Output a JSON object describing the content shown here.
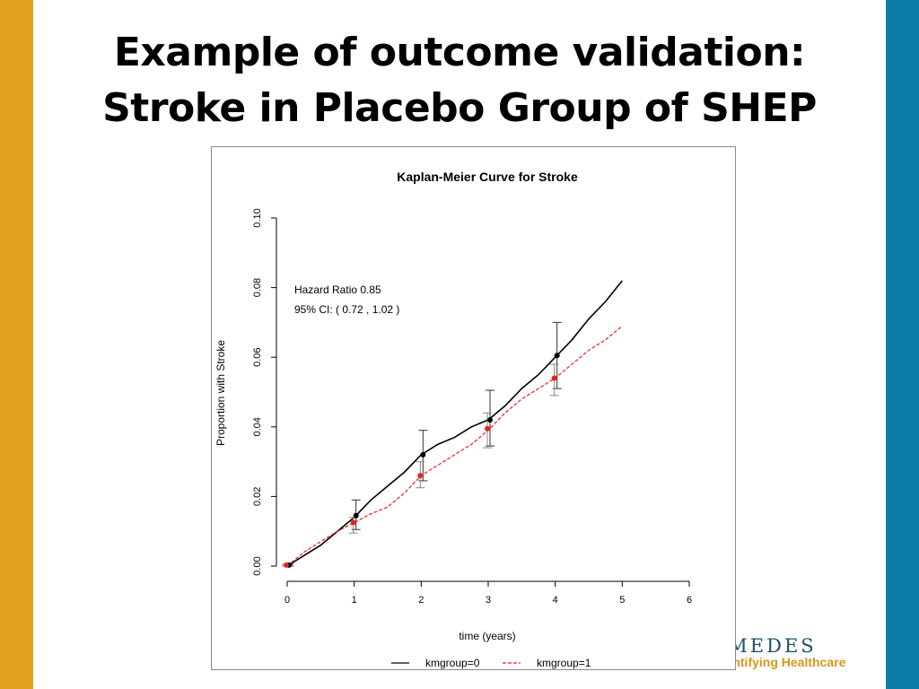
{
  "slide": {
    "title_line1": "Example of outcome validation:",
    "title_line2": "Stroke in Placebo Group of SHEP",
    "accent_left": "#e2a31e",
    "accent_right": "#0b7ea6"
  },
  "logo": {
    "name": "IMEDES",
    "tagline": "uantifying Healthcare"
  },
  "chart_data": {
    "type": "line",
    "title": "Kaplan-Meier Curve for Stroke",
    "xlabel": "time (years)",
    "ylabel": "Proportion with Stroke",
    "xlim": [
      0,
      6
    ],
    "ylim": [
      0,
      0.1
    ],
    "xticks": [
      0,
      1,
      2,
      3,
      4,
      5,
      6
    ],
    "xtick_labels": [
      "0",
      "1",
      "2",
      "3",
      "4",
      "5",
      "6"
    ],
    "yticks": [
      0,
      0.02,
      0.04,
      0.06,
      0.08,
      0.1
    ],
    "ytick_labels": [
      "0.00",
      "0.02",
      "0.04",
      "0.06",
      "0.08",
      "0.10"
    ],
    "grid": false,
    "annotations": [
      "Hazard Ratio 0.85",
      "95% CI: ( 0.72 , 1.02 )"
    ],
    "legend_position": "bottom",
    "series": [
      {
        "name": "kmgroup=0",
        "color": "#000000",
        "style": "solid",
        "x": [
          0,
          0.25,
          0.5,
          0.75,
          1,
          1.25,
          1.5,
          1.75,
          2,
          2.25,
          2.5,
          2.75,
          3,
          3.25,
          3.5,
          3.75,
          4,
          4.25,
          4.5,
          4.75,
          5
        ],
        "y": [
          0,
          0.003,
          0.006,
          0.01,
          0.014,
          0.019,
          0.023,
          0.027,
          0.032,
          0.035,
          0.037,
          0.04,
          0.042,
          0.046,
          0.051,
          0.055,
          0.06,
          0.065,
          0.071,
          0.076,
          0.082
        ],
        "points": {
          "x": [
            0,
            1,
            2,
            3,
            4
          ],
          "y": [
            0.0003,
            0.0145,
            0.032,
            0.042,
            0.0605
          ]
        },
        "ci_low": [
          0.0,
          0.0105,
          0.0245,
          0.0345,
          0.051
        ],
        "ci_high": [
          0.0005,
          0.019,
          0.039,
          0.0505,
          0.07
        ]
      },
      {
        "name": "kmgroup=1",
        "color": "#e8221c",
        "style": "dashed",
        "x": [
          0,
          0.25,
          0.5,
          0.75,
          1,
          1.25,
          1.5,
          1.75,
          2,
          2.25,
          2.5,
          2.75,
          3,
          3.25,
          3.5,
          3.75,
          4,
          4.25,
          4.5,
          4.75,
          5
        ],
        "y": [
          0,
          0.004,
          0.007,
          0.01,
          0.0125,
          0.015,
          0.017,
          0.021,
          0.026,
          0.029,
          0.032,
          0.035,
          0.039,
          0.044,
          0.048,
          0.051,
          0.054,
          0.058,
          0.062,
          0.065,
          0.069
        ],
        "points": {
          "x": [
            0,
            1,
            2,
            3,
            4
          ],
          "y": [
            0.0003,
            0.0125,
            0.026,
            0.0395,
            0.054
          ]
        },
        "ci_low": [
          0.0,
          0.0095,
          0.0225,
          0.034,
          0.049
        ],
        "ci_high": [
          0.0005,
          0.014,
          0.03,
          0.044,
          0.058
        ]
      }
    ]
  }
}
